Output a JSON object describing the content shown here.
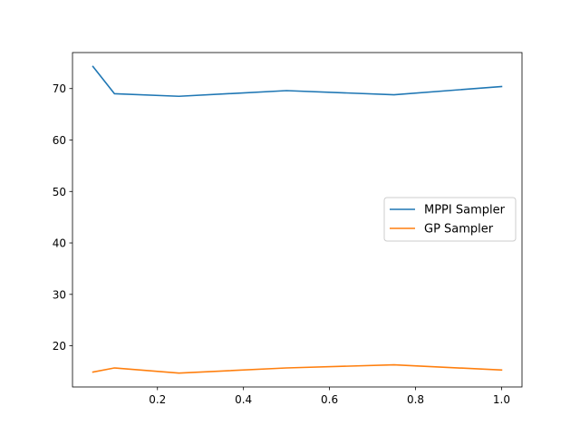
{
  "chart_data": {
    "type": "line",
    "title": "",
    "xlabel": "",
    "ylabel": "",
    "xlim": [
      0.0025,
      1.0475
    ],
    "ylim": [
      12.0,
      77.0
    ],
    "xticks": [
      0.2,
      0.4,
      0.6,
      0.8,
      1.0
    ],
    "xtick_labels": [
      "0.2",
      "0.4",
      "0.6",
      "0.8",
      "1.0"
    ],
    "yticks": [
      20,
      30,
      40,
      50,
      60,
      70
    ],
    "ytick_labels": [
      "20",
      "30",
      "40",
      "50",
      "60",
      "70"
    ],
    "grid": false,
    "legend_placement": "center-right",
    "series": [
      {
        "name": "MPPI Sampler",
        "color": "#1f77b4",
        "x": [
          0.05,
          0.1,
          0.25,
          0.5,
          0.75,
          1.0
        ],
        "y": [
          74.3,
          69.0,
          68.5,
          69.6,
          68.8,
          70.4
        ]
      },
      {
        "name": "GP Sampler",
        "color": "#ff7f0e",
        "x": [
          0.05,
          0.1,
          0.25,
          0.5,
          0.75,
          1.0
        ],
        "y": [
          14.9,
          15.7,
          14.7,
          15.7,
          16.3,
          15.3
        ]
      }
    ]
  }
}
